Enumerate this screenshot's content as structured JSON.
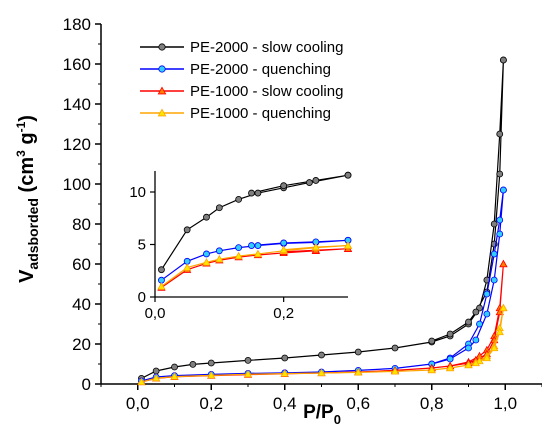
{
  "chart_data": {
    "type": "line",
    "xlabel": "P/P",
    "xlabel_sub": "0",
    "ylabel": {
      "main": "V",
      "sub": "adsborded",
      "units_open": " (cm",
      "sup1": "3",
      "units_mid": " g",
      "sup2": "-1",
      "units_close": ")"
    },
    "xlim": [
      -0.1,
      1.1
    ],
    "ylim": [
      0,
      180
    ],
    "xticks": [
      0.0,
      0.2,
      0.4,
      0.6,
      0.8,
      1.0
    ],
    "yticks": [
      0,
      20,
      40,
      60,
      80,
      100,
      120,
      140,
      160,
      180
    ],
    "xtick_labels": [
      "0,0",
      "0,2",
      "0,4",
      "0,6",
      "0,8",
      "1,0"
    ],
    "ytick_labels": [
      "0",
      "20",
      "40",
      "60",
      "80",
      "100",
      "120",
      "140",
      "160",
      "180"
    ],
    "legend_position": "top-left",
    "series": [
      {
        "name": "PE-2000 - slow cooling",
        "color": "#000000",
        "marker_color": "#7f7f7f",
        "marker": "circle",
        "adsorption": [
          [
            0.01,
            2.8
          ],
          [
            0.05,
            6.5
          ],
          [
            0.1,
            8.5
          ],
          [
            0.15,
            9.8
          ],
          [
            0.2,
            10.5
          ],
          [
            0.3,
            11.8
          ],
          [
            0.4,
            13
          ],
          [
            0.5,
            14.5
          ],
          [
            0.6,
            16
          ],
          [
            0.7,
            18
          ],
          [
            0.8,
            21
          ],
          [
            0.85,
            24
          ],
          [
            0.9,
            30
          ],
          [
            0.93,
            38
          ],
          [
            0.95,
            52
          ],
          [
            0.97,
            80
          ],
          [
            0.985,
            125
          ],
          [
            0.995,
            162
          ]
        ],
        "desorption": [
          [
            0.995,
            162
          ],
          [
            0.985,
            105
          ],
          [
            0.97,
            70
          ],
          [
            0.95,
            46
          ],
          [
            0.92,
            36
          ],
          [
            0.9,
            31
          ],
          [
            0.85,
            25
          ],
          [
            0.8,
            21.5
          ]
        ]
      },
      {
        "name": "PE-2000 - quenching",
        "color": "#0000ff",
        "marker_color": "#33ccff",
        "marker": "circle",
        "adsorption": [
          [
            0.01,
            1.5
          ],
          [
            0.05,
            3.5
          ],
          [
            0.1,
            4.2
          ],
          [
            0.2,
            4.8
          ],
          [
            0.3,
            5.3
          ],
          [
            0.4,
            5.6
          ],
          [
            0.5,
            6
          ],
          [
            0.6,
            6.8
          ],
          [
            0.7,
            7.8
          ],
          [
            0.8,
            10
          ],
          [
            0.85,
            13
          ],
          [
            0.9,
            20
          ],
          [
            0.93,
            30
          ],
          [
            0.95,
            45
          ],
          [
            0.97,
            65
          ],
          [
            0.985,
            82
          ],
          [
            0.995,
            97
          ]
        ],
        "desorption": [
          [
            0.995,
            97
          ],
          [
            0.985,
            75
          ],
          [
            0.97,
            52
          ],
          [
            0.95,
            35
          ],
          [
            0.92,
            22
          ],
          [
            0.9,
            18
          ],
          [
            0.85,
            12.5
          ],
          [
            0.8,
            10
          ]
        ]
      },
      {
        "name": "PE-1000 - slow cooling",
        "color": "#ff0000",
        "marker_color": "#ff7f00",
        "marker": "triangle",
        "adsorption": [
          [
            0.01,
            1
          ],
          [
            0.05,
            2.8
          ],
          [
            0.1,
            3.6
          ],
          [
            0.2,
            4.2
          ],
          [
            0.3,
            4.7
          ],
          [
            0.4,
            5.1
          ],
          [
            0.5,
            5.5
          ],
          [
            0.6,
            6
          ],
          [
            0.7,
            6.8
          ],
          [
            0.8,
            8
          ],
          [
            0.85,
            9
          ],
          [
            0.9,
            11
          ],
          [
            0.93,
            14
          ],
          [
            0.95,
            17
          ],
          [
            0.97,
            24
          ],
          [
            0.985,
            38
          ],
          [
            0.995,
            60
          ]
        ],
        "desorption": [
          [
            0.995,
            60
          ],
          [
            0.985,
            36
          ],
          [
            0.97,
            22
          ],
          [
            0.95,
            15
          ],
          [
            0.92,
            12
          ],
          [
            0.9,
            10.5
          ],
          [
            0.85,
            9
          ],
          [
            0.8,
            8
          ]
        ]
      },
      {
        "name": "PE-1000 - quenching",
        "color": "#ffa500",
        "marker_color": "#ffe600",
        "marker": "triangle",
        "adsorption": [
          [
            0.01,
            1
          ],
          [
            0.05,
            2.9
          ],
          [
            0.1,
            3.7
          ],
          [
            0.2,
            4.3
          ],
          [
            0.3,
            4.9
          ],
          [
            0.4,
            5.2
          ],
          [
            0.5,
            5.5
          ],
          [
            0.6,
            5.8
          ],
          [
            0.7,
            6.3
          ],
          [
            0.8,
            7
          ],
          [
            0.85,
            8
          ],
          [
            0.9,
            9.5
          ],
          [
            0.93,
            11.5
          ],
          [
            0.95,
            14
          ],
          [
            0.97,
            19
          ],
          [
            0.985,
            28
          ],
          [
            0.995,
            38
          ]
        ],
        "desorption": [
          [
            0.995,
            38
          ],
          [
            0.985,
            26
          ],
          [
            0.97,
            18
          ],
          [
            0.95,
            13
          ],
          [
            0.92,
            10.5
          ],
          [
            0.9,
            9.5
          ],
          [
            0.85,
            8
          ],
          [
            0.8,
            7
          ]
        ]
      }
    ],
    "inset": {
      "xlim": [
        0.0,
        0.3
      ],
      "ylim": [
        0,
        12
      ],
      "xticks": [
        0.0,
        0.2
      ],
      "yticks": [
        0,
        5,
        10
      ],
      "xtick_labels": [
        "0,0",
        "0,2"
      ],
      "ytick_labels": [
        "0",
        "5",
        "10"
      ],
      "series": [
        {
          "points": [
            [
              0.01,
              2.6
            ],
            [
              0.05,
              6.4
            ],
            [
              0.08,
              7.6
            ],
            [
              0.1,
              8.5
            ],
            [
              0.13,
              9.3
            ],
            [
              0.16,
              9.9
            ],
            [
              0.2,
              10.4
            ],
            [
              0.24,
              10.9
            ],
            [
              0.3,
              11.6
            ]
          ],
          "back": [
            [
              0.3,
              11.6
            ],
            [
              0.25,
              11.1
            ],
            [
              0.2,
              10.6
            ],
            [
              0.15,
              9.9
            ]
          ]
        },
        {
          "points": [
            [
              0.01,
              1.6
            ],
            [
              0.05,
              3.4
            ],
            [
              0.08,
              4.1
            ],
            [
              0.1,
              4.4
            ],
            [
              0.13,
              4.7
            ],
            [
              0.16,
              4.9
            ],
            [
              0.2,
              5.1
            ],
            [
              0.25,
              5.2
            ],
            [
              0.3,
              5.4
            ]
          ],
          "back": [
            [
              0.3,
              5.4
            ],
            [
              0.25,
              5.25
            ],
            [
              0.2,
              5.15
            ],
            [
              0.15,
              4.9
            ]
          ]
        },
        {
          "points": [
            [
              0.01,
              0.9
            ],
            [
              0.05,
              2.6
            ],
            [
              0.08,
              3.2
            ],
            [
              0.1,
              3.5
            ],
            [
              0.13,
              3.8
            ],
            [
              0.16,
              4.0
            ],
            [
              0.2,
              4.2
            ],
            [
              0.25,
              4.4
            ],
            [
              0.3,
              4.6
            ]
          ],
          "back": [
            [
              0.3,
              4.6
            ],
            [
              0.25,
              4.45
            ],
            [
              0.2,
              4.3
            ]
          ]
        },
        {
          "points": [
            [
              0.01,
              1.0
            ],
            [
              0.05,
              2.8
            ],
            [
              0.08,
              3.3
            ],
            [
              0.1,
              3.6
            ],
            [
              0.13,
              3.9
            ],
            [
              0.16,
              4.1
            ],
            [
              0.2,
              4.4
            ],
            [
              0.25,
              4.7
            ],
            [
              0.3,
              4.9
            ]
          ],
          "back": [
            [
              0.3,
              4.9
            ],
            [
              0.25,
              4.75
            ],
            [
              0.2,
              4.5
            ]
          ]
        }
      ]
    }
  }
}
